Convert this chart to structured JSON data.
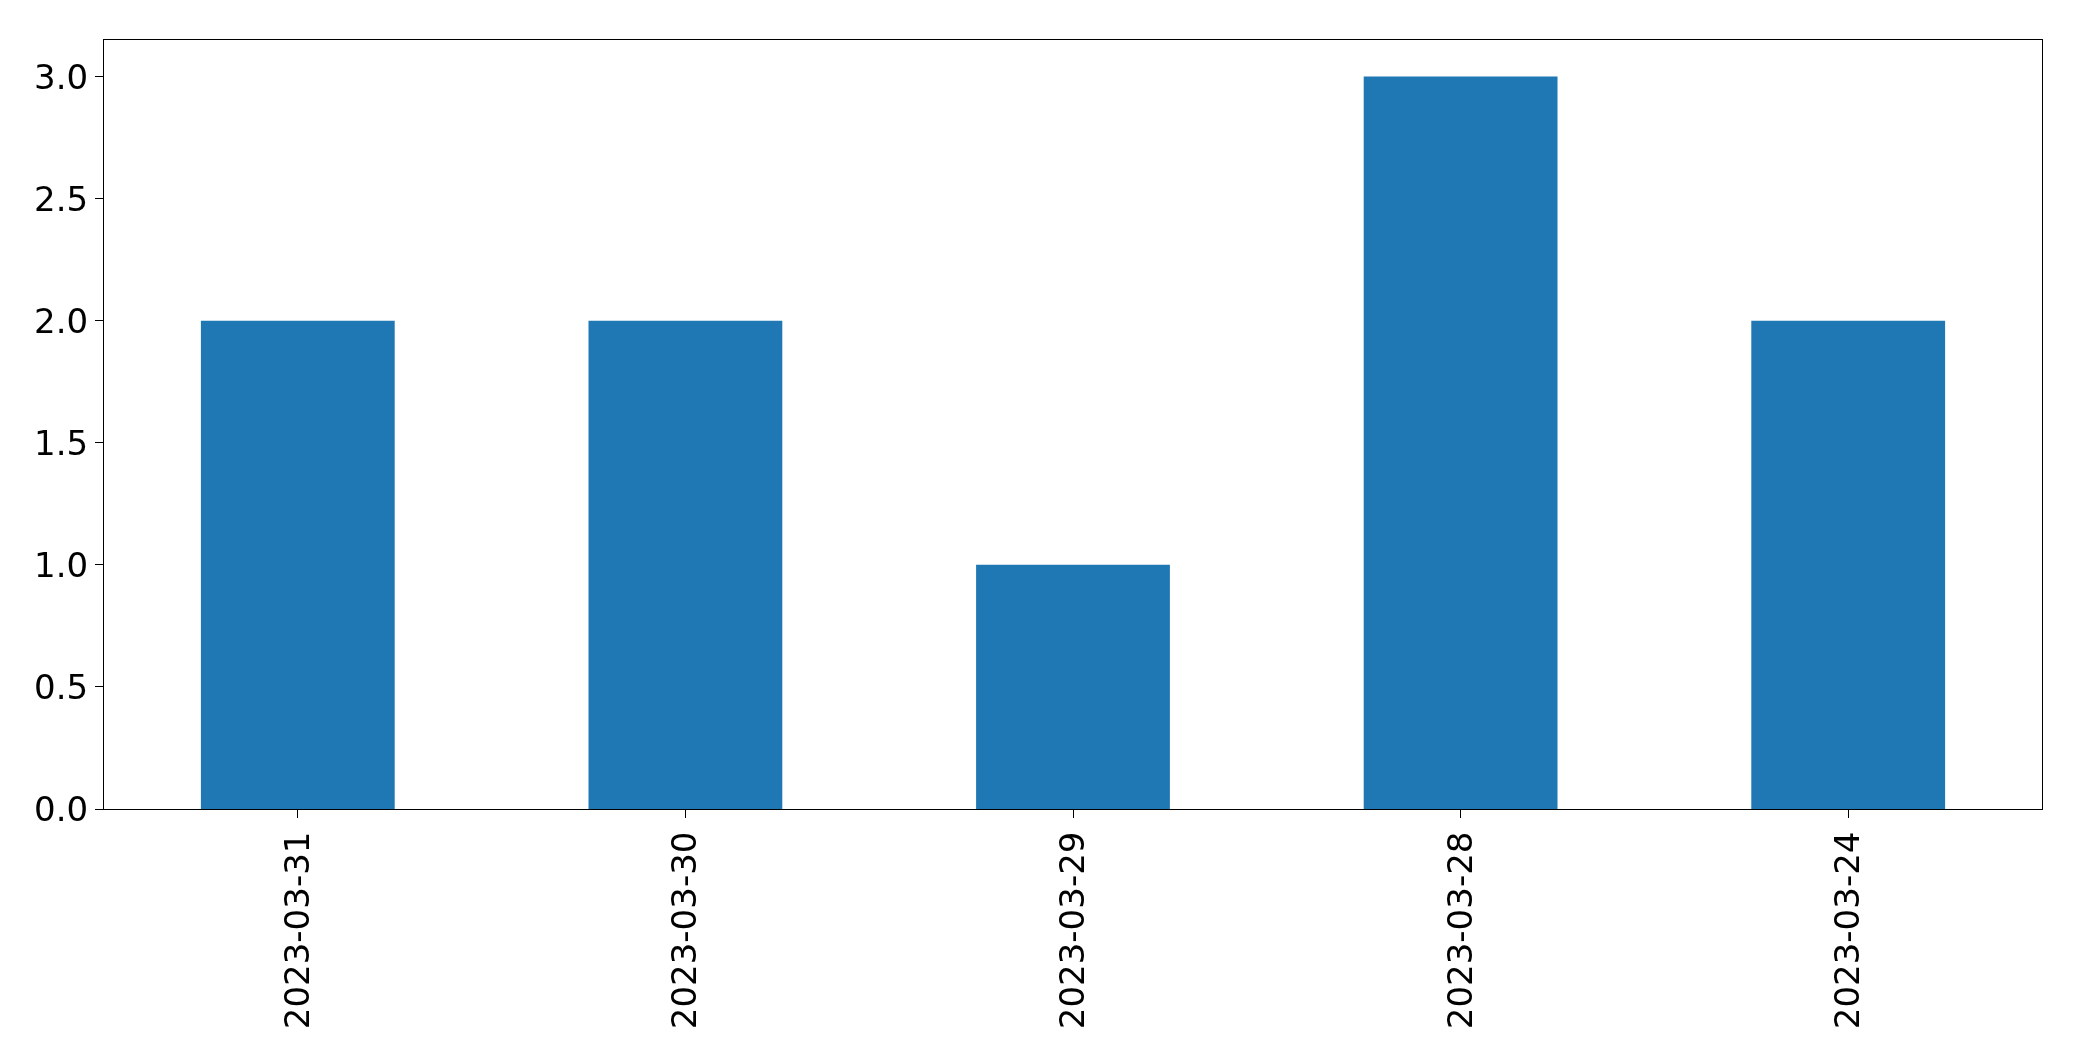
{
  "chart_data": {
    "type": "bar",
    "categories": [
      "2023-03-31",
      "2023-03-30",
      "2023-03-29",
      "2023-03-28",
      "2023-03-24"
    ],
    "values": [
      2,
      2,
      1,
      3,
      2
    ],
    "color": "#1f77b4",
    "ylim": [
      0,
      3.15
    ],
    "yticks": [
      {
        "value": 0,
        "label": "0.0"
      },
      {
        "value": 0.5,
        "label": "0.5"
      },
      {
        "value": 1,
        "label": "1.0"
      },
      {
        "value": 1.5,
        "label": "1.5"
      },
      {
        "value": 2,
        "label": "2.0"
      },
      {
        "value": 2.5,
        "label": "2.5"
      },
      {
        "value": 3,
        "label": "3.0"
      }
    ],
    "grid": false
  }
}
